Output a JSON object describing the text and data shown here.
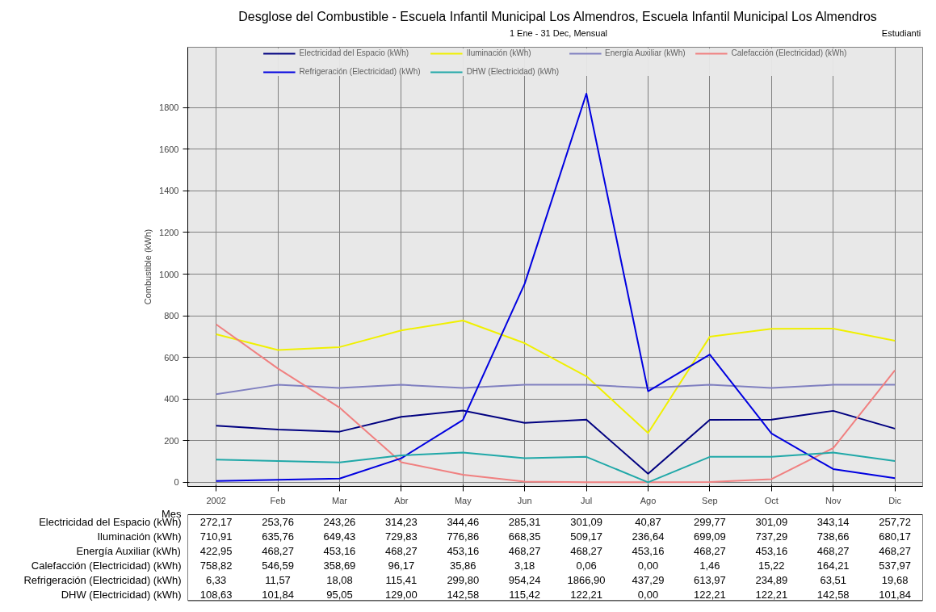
{
  "chart_data": {
    "type": "line",
    "title": "Desglose del Combustible - Escuela Infantil Municipal Los Almendros, Escuela Infantil Municipal Los Almendros",
    "subtitle": "1 Ene - 31 Dec, Mensual",
    "annotations": [
      "Estudianti"
    ],
    "xlabel": "Mes",
    "ylabel": "Combustible (kWh)",
    "categories": [
      "2002",
      "Feb",
      "Mar",
      "Abr",
      "May",
      "Jun",
      "Jul",
      "Ago",
      "Sep",
      "Oct",
      "Nov",
      "Dic"
    ],
    "ylim": [
      -20,
      2090
    ],
    "yticks": [
      0,
      200,
      400,
      600,
      800,
      1000,
      1200,
      1400,
      1600,
      1800
    ],
    "grid": true,
    "legend": "top",
    "marker": "none",
    "line_style": "solid",
    "series": [
      {
        "name": "Electricidad del Espacio (kWh)",
        "color": "#000080",
        "values": [
          272.17,
          253.76,
          243.26,
          314.23,
          344.46,
          285.31,
          301.09,
          40.87,
          299.77,
          301.09,
          343.14,
          257.72
        ],
        "value_labels": [
          "272,17",
          "253,76",
          "243,26",
          "314,23",
          "344,46",
          "285,31",
          "301,09",
          "40,87",
          "299,77",
          "301,09",
          "343,14",
          "257,72"
        ]
      },
      {
        "name": "Iluminación (kWh)",
        "color": "#f0f000",
        "values": [
          710.91,
          635.76,
          649.43,
          729.83,
          776.86,
          668.35,
          509.17,
          236.64,
          699.09,
          737.29,
          738.66,
          680.17
        ],
        "value_labels": [
          "710,91",
          "635,76",
          "649,43",
          "729,83",
          "776,86",
          "668,35",
          "509,17",
          "236,64",
          "699,09",
          "737,29",
          "738,66",
          "680,17"
        ]
      },
      {
        "name": "Energía Auxiliar (kWh)",
        "color": "#8080c0",
        "values": [
          422.95,
          468.27,
          453.16,
          468.27,
          453.16,
          468.27,
          468.27,
          453.16,
          468.27,
          453.16,
          468.27,
          468.27
        ],
        "value_labels": [
          "422,95",
          "468,27",
          "453,16",
          "468,27",
          "453,16",
          "468,27",
          "468,27",
          "453,16",
          "468,27",
          "453,16",
          "468,27",
          "468,27"
        ]
      },
      {
        "name": "Calefacción (Electricidad) (kWh)",
        "color": "#f08080",
        "values": [
          758.82,
          546.59,
          358.69,
          96.17,
          35.86,
          3.18,
          0.06,
          0.0,
          1.46,
          15.22,
          164.21,
          537.97
        ],
        "value_labels": [
          "758,82",
          "546,59",
          "358,69",
          "96,17",
          "35,86",
          "3,18",
          "0,06",
          "0,00",
          "1,46",
          "15,22",
          "164,21",
          "537,97"
        ]
      },
      {
        "name": "Refrigeración (Electricidad) (kWh)",
        "color": "#0000e0",
        "values": [
          6.33,
          11.57,
          18.08,
          115.41,
          299.8,
          954.24,
          1866.9,
          437.29,
          613.97,
          234.89,
          63.51,
          19.68
        ],
        "value_labels": [
          "6,33",
          "11,57",
          "18,08",
          "115,41",
          "299,80",
          "954,24",
          "1866,90",
          "437,29",
          "613,97",
          "234,89",
          "63,51",
          "19,68"
        ]
      },
      {
        "name": "DHW (Electricidad) (kWh)",
        "color": "#20a8a8",
        "values": [
          108.63,
          101.84,
          95.05,
          129.0,
          142.58,
          115.42,
          122.21,
          0.0,
          122.21,
          122.21,
          142.58,
          101.84
        ],
        "value_labels": [
          "108,63",
          "101,84",
          "95,05",
          "129,00",
          "142,58",
          "115,42",
          "122,21",
          "0,00",
          "122,21",
          "122,21",
          "142,58",
          "101,84"
        ]
      }
    ]
  }
}
